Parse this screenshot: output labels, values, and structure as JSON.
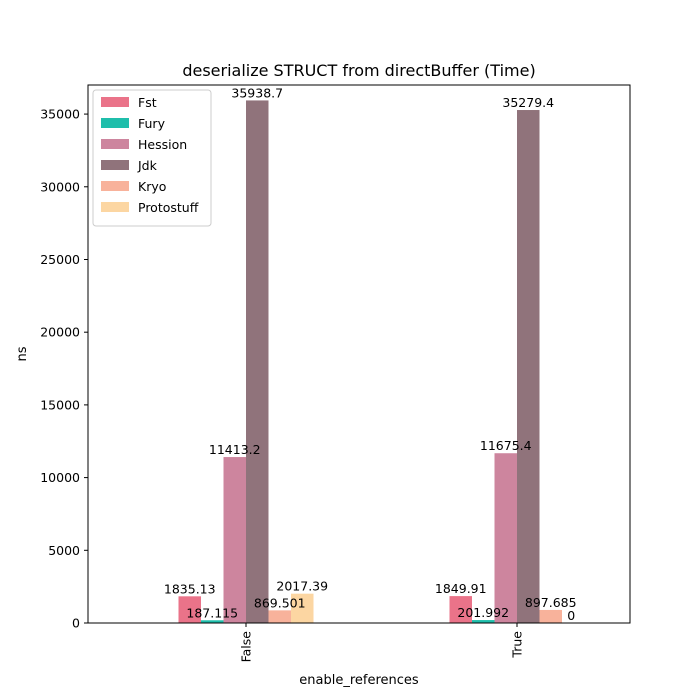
{
  "chart_data": {
    "type": "bar",
    "title": "deserialize STRUCT from directBuffer (Time)",
    "xlabel": "enable_references",
    "ylabel": "ns",
    "categories": [
      "False",
      "True"
    ],
    "ylim": [
      0,
      37000
    ],
    "yticks": [
      0,
      5000,
      10000,
      15000,
      20000,
      25000,
      30000,
      35000
    ],
    "grid": false,
    "legend_position": "top-left",
    "series": [
      {
        "name": "Fst",
        "color": "#e8677f",
        "values": [
          1835.13,
          1849.91
        ],
        "labels": [
          "1835.13",
          "1849.91"
        ]
      },
      {
        "name": "Fury",
        "color": "#0cb8a4",
        "values": [
          187.115,
          201.992
        ],
        "labels": [
          "187.115",
          "201.992"
        ]
      },
      {
        "name": "Hession",
        "color": "#c97b96",
        "values": [
          11413.2,
          11675.4
        ],
        "labels": [
          "11413.2",
          "11675.4"
        ]
      },
      {
        "name": "Jdk",
        "color": "#876770",
        "values": [
          35938.7,
          35279.4
        ],
        "labels": [
          "35938.7",
          "35279.4"
        ]
      },
      {
        "name": "Kryo",
        "color": "#f7ab93",
        "values": [
          869.501,
          897.685
        ],
        "labels": [
          "869.501",
          "897.685"
        ]
      },
      {
        "name": "Protostuff",
        "color": "#fcd39a",
        "values": [
          2017.39,
          0
        ],
        "labels": [
          "2017.39",
          "0"
        ]
      }
    ]
  }
}
